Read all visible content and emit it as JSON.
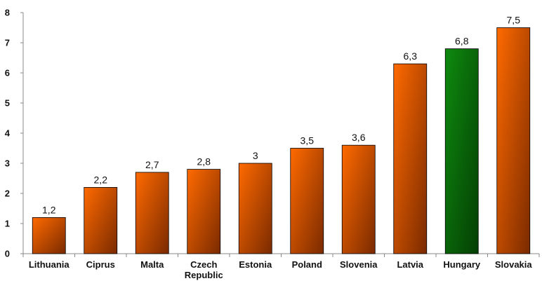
{
  "chart_data": {
    "type": "bar",
    "categories": [
      "Lithuania",
      "Ciprus",
      "Malta",
      "Czech Republic",
      "Estonia",
      "Poland",
      "Slovenia",
      "Latvia",
      "Hungary",
      "Slovakia"
    ],
    "category_lines": [
      [
        "Lithuania"
      ],
      [
        "Ciprus"
      ],
      [
        "Malta"
      ],
      [
        "Czech",
        "Republic"
      ],
      [
        "Estonia"
      ],
      [
        "Poland"
      ],
      [
        "Slovenia"
      ],
      [
        "Latvia"
      ],
      [
        "Hungary"
      ],
      [
        "Slovakia"
      ]
    ],
    "values": [
      1.2,
      2.2,
      2.7,
      2.8,
      3,
      3.5,
      3.6,
      6.3,
      6.8,
      7.5
    ],
    "value_labels": [
      "1,2",
      "2,2",
      "2,7",
      "2,8",
      "3",
      "3,5",
      "3,6",
      "6,3",
      "6,8",
      "7,5"
    ],
    "highlight": "Hungary",
    "title": "",
    "xlabel": "",
    "ylabel": "",
    "ylim": [
      0,
      8
    ],
    "yticks": [
      0,
      1,
      2,
      3,
      4,
      5,
      6,
      7,
      8
    ],
    "grid": false,
    "legend": "none",
    "colors": {
      "bar_light": "#FF6A00",
      "bar_dark": "#7A2A00",
      "highlight_light": "#0E8A0E",
      "highlight_dark": "#043E04",
      "axis": "#888888",
      "text": "#111111"
    }
  }
}
